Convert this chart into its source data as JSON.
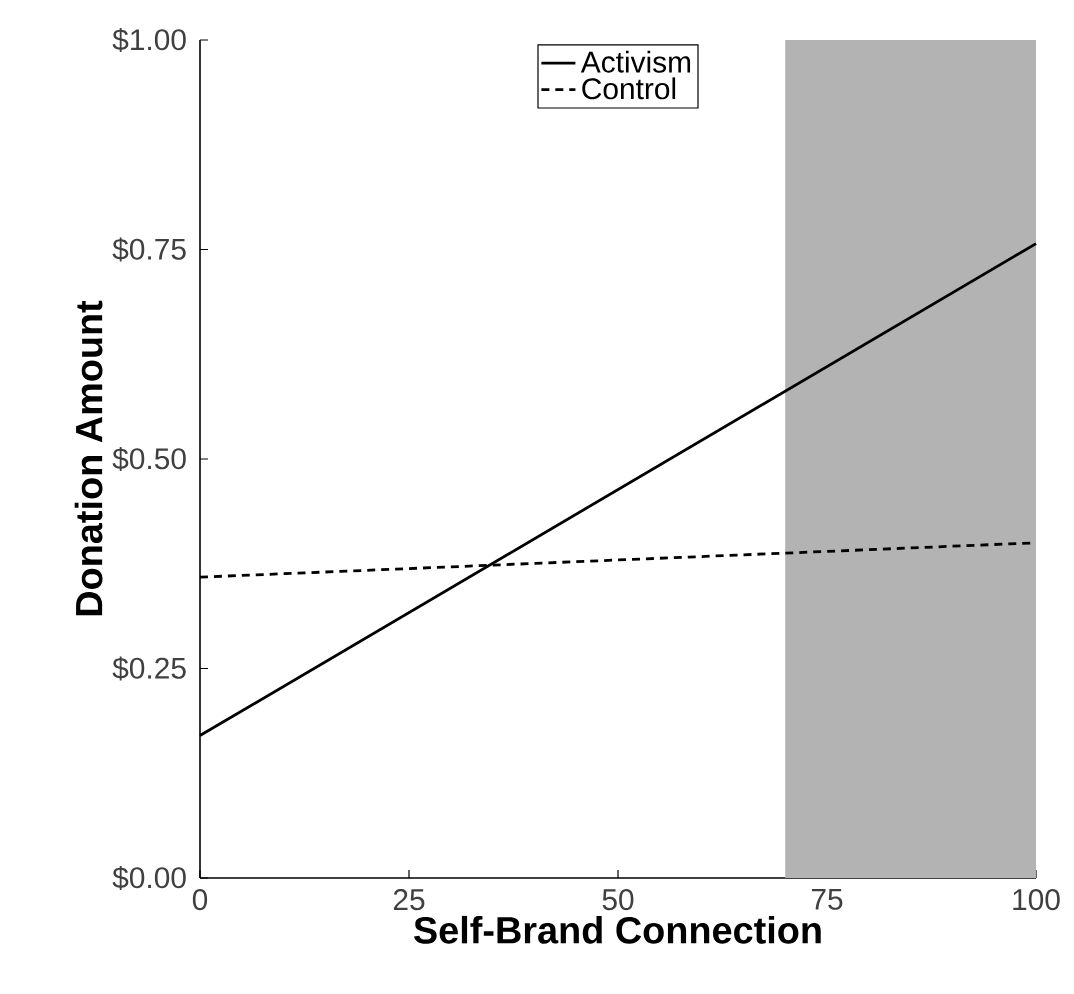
{
  "chart_data": {
    "type": "line",
    "xlabel": "Self-Brand Connection",
    "ylabel": "Donation Amount",
    "series": [
      {
        "name": "Activism",
        "color": "#000000",
        "line_style": "solid",
        "values": [
          0.17,
          0.757
        ]
      },
      {
        "name": "Control",
        "color": "#000000",
        "line_style": "dashed",
        "values": [
          0.359,
          0.4
        ]
      }
    ],
    "x": [
      0,
      100
    ],
    "xlim": [
      0,
      100
    ],
    "xticks": [
      0,
      25,
      50,
      75,
      100
    ],
    "ylim": [
      0,
      1
    ],
    "yticks": [
      {
        "value": 0,
        "label": "$0.00"
      },
      {
        "value": 0.25,
        "label": "$0.25"
      },
      {
        "value": 0.5,
        "label": "$0.50"
      },
      {
        "value": 0.75,
        "label": "$0.75"
      },
      {
        "value": 1,
        "label": "$1.00"
      }
    ],
    "bands": [
      {
        "axis": "x",
        "from": 70,
        "to": 100,
        "color": "#b3b3b3"
      }
    ],
    "legend": "top",
    "grid": false,
    "marker": "none"
  }
}
